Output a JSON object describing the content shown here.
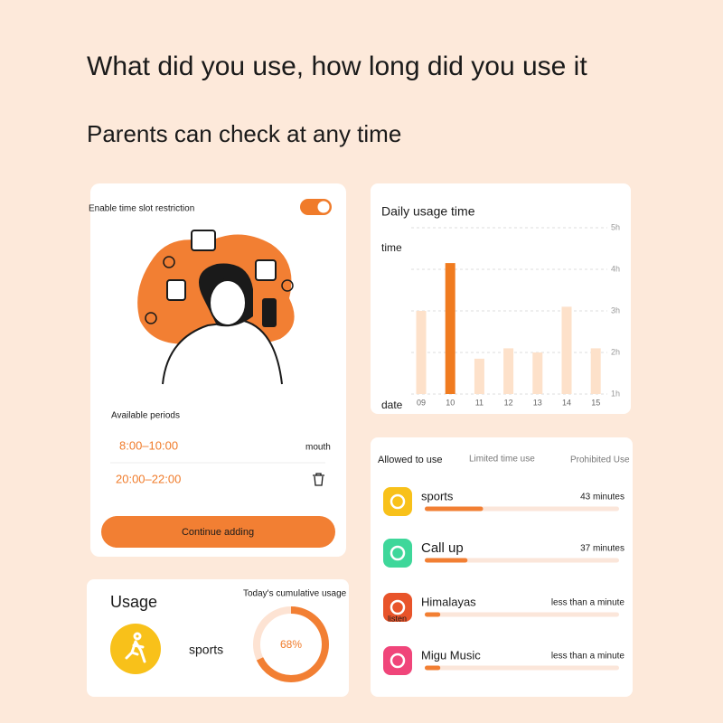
{
  "header": {
    "title": "What did you use, how long did you use it",
    "subtitle": "Parents can check at any time"
  },
  "restriction_card": {
    "toggle_label": "Enable time slot restriction",
    "periods_label": "Available periods",
    "periods": [
      {
        "time": "8:00–10:00",
        "repeat": "mouth"
      },
      {
        "time": "20:00–22:00"
      }
    ],
    "button": "Continue adding"
  },
  "usage_card": {
    "title": "Usage",
    "app": "sports",
    "cumulative_label": "Today's cumulative usage",
    "percent": {
      "value": 68,
      "label": "68%"
    }
  },
  "chart_data": {
    "type": "bar",
    "title": "Daily usage time",
    "y_label": "time",
    "x_label": "date",
    "categories": [
      "09",
      "10",
      "11",
      "12",
      "13",
      "14",
      "15"
    ],
    "values": [
      3.0,
      4.15,
      1.85,
      2.1,
      2.0,
      3.1,
      2.1
    ],
    "color": "#fde1ca",
    "highlight": "10",
    "highlight_color": "#f07b1f",
    "ylim": [
      1,
      5
    ],
    "yticks": [
      {
        "value": 1,
        "label": "1h"
      },
      {
        "value": 2,
        "label": "2h"
      },
      {
        "value": 3,
        "label": "3h"
      },
      {
        "value": 4,
        "label": "4h"
      },
      {
        "value": 5,
        "label": "5h"
      }
    ],
    "grid": true
  },
  "app_list": {
    "tabs": [
      "Allowed to use",
      "Limited time use",
      "Prohibited Use"
    ],
    "apps": [
      {
        "name": "sports",
        "time": "43 minutes",
        "progress": 30
      },
      {
        "name": "Call up",
        "time": "37 minutes",
        "progress": 22
      },
      {
        "name": "Himalayas",
        "icon_label": "listen",
        "time": "less than a minute",
        "progress": 8
      },
      {
        "name": "Migu Music",
        "time": "less than a minute",
        "progress": 8
      }
    ]
  }
}
